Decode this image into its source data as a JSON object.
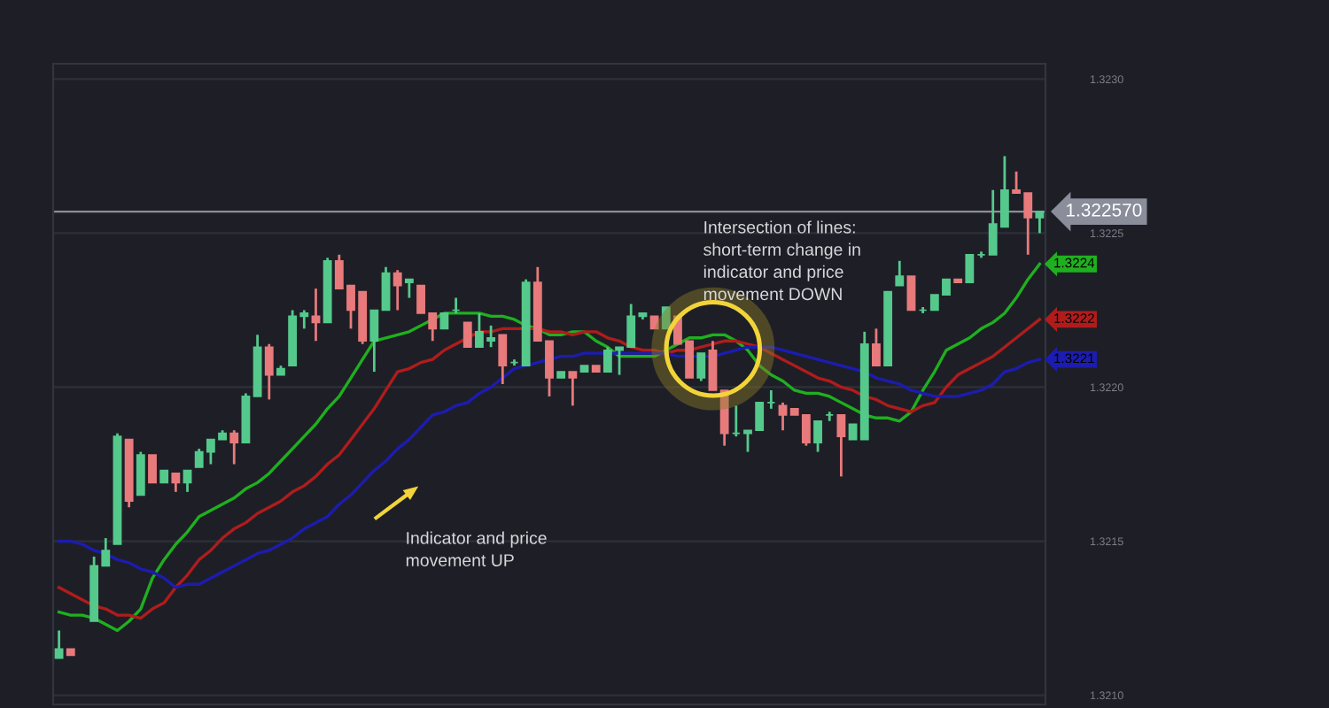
{
  "chart_data": {
    "type": "candlestick",
    "categories": [
      null,
      null,
      null,
      null,
      null,
      null,
      null,
      null,
      null,
      null,
      null,
      null,
      null,
      null,
      null,
      null,
      null,
      null,
      null,
      null,
      null,
      null,
      null,
      null,
      null,
      null,
      null,
      null,
      null,
      null,
      null,
      null,
      null,
      null,
      null,
      null,
      null,
      null,
      null,
      null,
      null,
      null,
      null,
      null,
      null,
      null,
      null,
      null,
      null,
      null,
      null,
      null,
      null,
      null,
      null,
      null,
      null,
      null,
      null,
      null,
      null,
      null,
      null,
      null,
      null,
      null,
      null,
      null,
      null,
      null,
      null,
      null,
      null,
      null,
      null,
      null,
      null,
      null,
      null,
      null,
      null,
      null,
      null,
      null,
      null
    ],
    "ohlc": [
      [
        1.32112,
        1.32121,
        1.32112,
        1.32115
      ],
      [
        1.32115,
        1.32115,
        1.32113,
        1.32113
      ],
      null,
      [
        1.32124,
        1.32145,
        1.32124,
        1.32142
      ],
      [
        1.32142,
        1.32151,
        1.32142,
        1.32147
      ],
      [
        1.32149,
        1.32185,
        1.32149,
        1.32184
      ],
      [
        1.32183,
        1.32183,
        1.32161,
        1.32163
      ],
      [
        1.32165,
        1.32179,
        1.32165,
        1.32178
      ],
      [
        1.32178,
        1.32178,
        1.32169,
        1.32169
      ],
      [
        1.32169,
        1.32173,
        1.32169,
        1.32173
      ],
      [
        1.32172,
        1.32172,
        1.32166,
        1.32169
      ],
      [
        1.32169,
        1.32173,
        1.32166,
        1.32173
      ],
      [
        1.32174,
        1.3218,
        1.32174,
        1.32179
      ],
      [
        1.32179,
        1.32183,
        1.32175,
        1.32183
      ],
      [
        1.32183,
        1.32186,
        1.32183,
        1.32185
      ],
      [
        1.32185,
        1.32186,
        1.32175,
        1.32182
      ],
      [
        1.32182,
        1.32198,
        1.32182,
        1.32197
      ],
      [
        1.32197,
        1.32217,
        1.32197,
        1.32213
      ],
      [
        1.32213,
        1.32214,
        1.32196,
        1.32204
      ],
      [
        1.32204,
        1.32207,
        1.32204,
        1.32206
      ],
      [
        1.32207,
        1.32225,
        1.32207,
        1.32223
      ],
      [
        1.32223,
        1.32225,
        1.32219,
        1.32224
      ],
      [
        1.32223,
        1.32232,
        1.32215,
        1.32221
      ],
      [
        1.32221,
        1.32242,
        1.32221,
        1.32241
      ],
      [
        1.32241,
        1.32243,
        1.32232,
        1.32232
      ],
      [
        1.32233,
        1.32233,
        1.32219,
        1.32225
      ],
      [
        1.32231,
        1.32231,
        1.32214,
        1.32215
      ],
      [
        1.32215,
        1.32225,
        1.32205,
        1.32225
      ],
      [
        1.32225,
        1.32239,
        1.32225,
        1.32237
      ],
      [
        1.32237,
        1.32238,
        1.32225,
        1.32233
      ],
      [
        1.32234,
        1.32235,
        1.32229,
        1.32235
      ],
      [
        1.32233,
        1.32233,
        1.32224,
        1.32224
      ],
      [
        1.32224,
        1.32224,
        1.32215,
        1.32219
      ],
      [
        1.32219,
        1.32224,
        1.32219,
        1.32224
      ],
      [
        1.32225,
        1.32229,
        1.32224,
        1.32225
      ],
      [
        1.32221,
        1.32221,
        1.32213,
        1.32213
      ],
      [
        1.32213,
        1.32224,
        1.32213,
        1.32218
      ],
      [
        1.32215,
        1.3222,
        1.32213,
        1.32216
      ],
      [
        1.32217,
        1.32217,
        1.32201,
        1.32207
      ],
      [
        1.32208,
        1.32209,
        1.32207,
        1.32208
      ],
      [
        1.32207,
        1.32235,
        1.32207,
        1.32234
      ],
      [
        1.32234,
        1.32239,
        1.32215,
        1.32215
      ],
      [
        1.32215,
        1.32215,
        1.32197,
        1.32203
      ],
      [
        1.32203,
        1.32205,
        1.32203,
        1.32205
      ],
      [
        1.32205,
        1.32205,
        1.32194,
        1.32203
      ],
      [
        1.32205,
        1.32207,
        1.32205,
        1.32207
      ],
      [
        1.32207,
        1.32207,
        1.32205,
        1.32205
      ],
      [
        1.32205,
        1.32213,
        1.32205,
        1.32212
      ],
      [
        1.32212,
        1.32213,
        1.32204,
        1.32213
      ],
      [
        1.32213,
        1.32227,
        1.32213,
        1.32223
      ],
      [
        1.32223,
        1.32224,
        1.32222,
        1.32224
      ],
      [
        1.32223,
        1.32223,
        1.32219,
        1.32219
      ],
      [
        1.32219,
        1.32226,
        1.32219,
        1.32226
      ],
      [
        1.32223,
        1.32223,
        1.32214,
        1.32214
      ],
      [
        1.32215,
        1.32215,
        1.32203,
        1.32203
      ],
      [
        1.32203,
        1.32211,
        1.32202,
        1.32211
      ],
      [
        1.32212,
        1.32215,
        1.32199,
        1.32199
      ],
      [
        1.32199,
        1.32199,
        1.32181,
        1.32185
      ],
      [
        1.32185,
        1.32194,
        1.32184,
        1.32185
      ],
      [
        1.32185,
        1.32186,
        1.32179,
        1.32186
      ],
      [
        1.32186,
        1.32195,
        1.32186,
        1.32195
      ],
      [
        1.32195,
        1.32199,
        1.32193,
        1.32195
      ],
      [
        1.32194,
        1.32195,
        1.32186,
        1.32191
      ],
      [
        1.32193,
        1.32193,
        1.32191,
        1.32191
      ],
      [
        1.32191,
        1.32191,
        1.32181,
        1.32182
      ],
      [
        1.32182,
        1.32189,
        1.32179,
        1.32189
      ],
      [
        1.32191,
        1.32192,
        1.32189,
        1.32191
      ],
      [
        1.32191,
        1.32191,
        1.32171,
        1.32184
      ],
      [
        1.32183,
        1.32188,
        1.32183,
        1.32188
      ],
      [
        1.32183,
        1.32218,
        1.32183,
        1.32214
      ],
      [
        1.32214,
        1.32219,
        1.32207,
        1.32207
      ],
      [
        1.32207,
        1.32231,
        1.32207,
        1.32231
      ],
      [
        1.32233,
        1.32241,
        1.32233,
        1.32236
      ],
      [
        1.32236,
        1.32236,
        1.32225,
        1.32225
      ],
      [
        1.32225,
        1.32226,
        1.32224,
        1.32225
      ],
      [
        1.32225,
        1.3223,
        1.32225,
        1.3223
      ],
      [
        1.3223,
        1.32235,
        1.3223,
        1.32235
      ],
      [
        1.32235,
        1.32235,
        1.32234,
        1.32234
      ],
      [
        1.32234,
        1.32243,
        1.32234,
        1.32243
      ],
      [
        1.32243,
        1.32244,
        1.32242,
        1.32243
      ],
      [
        1.32243,
        1.32264,
        1.32243,
        1.32253
      ],
      [
        1.32252,
        1.32275,
        1.32252,
        1.32264
      ],
      [
        1.32264,
        1.3227,
        1.32263,
        1.32263
      ],
      [
        1.32263,
        1.32263,
        1.32243,
        1.32255
      ],
      [
        1.32255,
        1.32257,
        1.3225,
        1.32257
      ]
    ],
    "series": [
      {
        "type": "line",
        "color": "#1fb01f",
        "values": [
          1.32127,
          1.32126,
          1.32126,
          1.32125,
          1.32123,
          1.32121,
          1.32124,
          1.32128,
          1.32138,
          1.32144,
          1.32149,
          1.32153,
          1.32158,
          1.3216,
          1.32162,
          1.32164,
          1.32167,
          1.32169,
          1.32172,
          1.32176,
          1.3218,
          1.32184,
          1.32188,
          1.32193,
          1.32197,
          1.32203,
          1.32209,
          1.32215,
          1.32216,
          1.32217,
          1.32218,
          1.3222,
          1.32222,
          1.32224,
          1.32224,
          1.32224,
          1.32224,
          1.32223,
          1.32223,
          1.32222,
          1.3222,
          1.32219,
          1.32217,
          1.32217,
          1.32218,
          1.32218,
          1.32215,
          1.32213,
          1.3221,
          1.3221,
          1.3221,
          1.3221,
          1.32212,
          1.32214,
          1.32216,
          1.32216,
          1.32217,
          1.32217,
          1.32215,
          1.32212,
          1.32207,
          1.32204,
          1.32202,
          1.32199,
          1.32198,
          1.32198,
          1.32197,
          1.32195,
          1.32193,
          1.32191,
          1.3219,
          1.3219,
          1.32189,
          1.32192,
          1.32199,
          1.32205,
          1.32212,
          1.32214,
          1.32216,
          1.32219,
          1.32221,
          1.32224,
          1.32229,
          1.32235,
          1.3224
        ],
        "value_labels": [
          null,
          null,
          null,
          null,
          null,
          null,
          null,
          null,
          null,
          null,
          null,
          null,
          null,
          null,
          null,
          null,
          null,
          null,
          null,
          null,
          null,
          null,
          null,
          null,
          null,
          null,
          null,
          null,
          null,
          null,
          null,
          null,
          null,
          null,
          null,
          null,
          null,
          null,
          null,
          null,
          null,
          null,
          null,
          null,
          null,
          null,
          null,
          null,
          null,
          null,
          null,
          null,
          null,
          null,
          null,
          null,
          null,
          null,
          null,
          null,
          null,
          null,
          null,
          null,
          null,
          null,
          null,
          null,
          null,
          null,
          null,
          null,
          null,
          null,
          null,
          null,
          null,
          null,
          null,
          null,
          null,
          null,
          null,
          null,
          "1.3224"
        ]
      },
      {
        "type": "line",
        "color": "#b01c1c",
        "values": [
          1.32135,
          1.32133,
          1.32131,
          1.32129,
          1.32128,
          1.32126,
          1.32126,
          1.32125,
          1.32128,
          1.3213,
          1.32135,
          1.32139,
          1.32144,
          1.32147,
          1.32151,
          1.32154,
          1.32156,
          1.32159,
          1.32161,
          1.32163,
          1.32166,
          1.32168,
          1.32171,
          1.32175,
          1.32178,
          1.32183,
          1.32188,
          1.32193,
          1.32199,
          1.32205,
          1.32206,
          1.32208,
          1.32209,
          1.32212,
          1.32214,
          1.32216,
          1.32218,
          1.32218,
          1.32219,
          1.32219,
          1.32219,
          1.32219,
          1.32218,
          1.32218,
          1.32217,
          1.32218,
          1.32218,
          1.32216,
          1.32215,
          1.32213,
          1.32212,
          1.32212,
          1.32211,
          1.32212,
          1.32212,
          1.32213,
          1.32214,
          1.32215,
          1.32215,
          1.32214,
          1.32213,
          1.32211,
          1.32209,
          1.32207,
          1.32205,
          1.32203,
          1.32202,
          1.322,
          1.32199,
          1.32197,
          1.32196,
          1.32194,
          1.32193,
          1.32192,
          1.32194,
          1.32195,
          1.322,
          1.32204,
          1.32206,
          1.32208,
          1.3221,
          1.32213,
          1.32216,
          1.32219,
          1.32222
        ],
        "value_labels": [
          null,
          null,
          null,
          null,
          null,
          null,
          null,
          null,
          null,
          null,
          null,
          null,
          null,
          null,
          null,
          null,
          null,
          null,
          null,
          null,
          null,
          null,
          null,
          null,
          null,
          null,
          null,
          null,
          null,
          null,
          null,
          null,
          null,
          null,
          null,
          null,
          null,
          null,
          null,
          null,
          null,
          null,
          null,
          null,
          null,
          null,
          null,
          null,
          null,
          null,
          null,
          null,
          null,
          null,
          null,
          null,
          null,
          null,
          null,
          null,
          null,
          null,
          null,
          null,
          null,
          null,
          null,
          null,
          null,
          null,
          null,
          null,
          null,
          null,
          null,
          null,
          null,
          null,
          null,
          null,
          null,
          null,
          null,
          null,
          "1.3222"
        ]
      },
      {
        "type": "line",
        "color": "#1c1cb0",
        "values": [
          1.3215,
          1.3215,
          1.32149,
          1.32147,
          1.32146,
          1.32144,
          1.32143,
          1.32141,
          1.3214,
          1.32138,
          1.32135,
          1.32136,
          1.32136,
          1.32138,
          1.3214,
          1.32142,
          1.32144,
          1.32146,
          1.32147,
          1.32149,
          1.32151,
          1.32154,
          1.32156,
          1.32158,
          1.32162,
          1.32165,
          1.32169,
          1.32173,
          1.32176,
          1.3218,
          1.32183,
          1.32187,
          1.32191,
          1.32192,
          1.32194,
          1.32195,
          1.32198,
          1.322,
          1.32203,
          1.32206,
          1.32207,
          1.32208,
          1.32209,
          1.3221,
          1.3221,
          1.32211,
          1.32211,
          1.32211,
          1.32211,
          1.32211,
          1.32211,
          1.32211,
          1.32211,
          1.3221,
          1.3221,
          1.3221,
          1.3221,
          1.32211,
          1.32212,
          1.32213,
          1.32213,
          1.32213,
          1.32212,
          1.32211,
          1.3221,
          1.32209,
          1.32208,
          1.32207,
          1.32206,
          1.32205,
          1.32203,
          1.32202,
          1.32201,
          1.32199,
          1.32198,
          1.32197,
          1.32197,
          1.32197,
          1.32198,
          1.32199,
          1.32201,
          1.32205,
          1.32206,
          1.32208,
          1.32209
        ],
        "value_labels": [
          null,
          null,
          null,
          null,
          null,
          null,
          null,
          null,
          null,
          null,
          null,
          null,
          null,
          null,
          null,
          null,
          null,
          null,
          null,
          null,
          null,
          null,
          null,
          null,
          null,
          null,
          null,
          null,
          null,
          null,
          null,
          null,
          null,
          null,
          null,
          null,
          null,
          null,
          null,
          null,
          null,
          null,
          null,
          null,
          null,
          null,
          null,
          null,
          null,
          null,
          null,
          null,
          null,
          null,
          null,
          null,
          null,
          null,
          null,
          null,
          null,
          null,
          null,
          null,
          null,
          null,
          null,
          null,
          null,
          null,
          null,
          null,
          null,
          null,
          null,
          null,
          null,
          null,
          null,
          null,
          null,
          null,
          null,
          null,
          "1.3221"
        ]
      }
    ],
    "ylim": [
      1.32097,
      1.32305
    ],
    "yticks": [
      {
        "value": 1.321,
        "label": "1.3210"
      },
      {
        "value": 1.3215,
        "label": "1.3215"
      },
      {
        "value": 1.322,
        "label": "1.3220"
      },
      {
        "value": 1.3225,
        "label": "1.3225"
      },
      {
        "value": 1.323,
        "label": "1.3230"
      }
    ],
    "grid": "y",
    "ref_lines": [
      {
        "axis": "y",
        "value": 1.32257,
        "label": "1.322570",
        "color": "#8a8d9a"
      }
    ],
    "annotations": [
      "Indicator and price\nmovement UP",
      "Intersection of lines:\nshort-term change in\nindicator and price\nmovement DOWN"
    ]
  }
}
